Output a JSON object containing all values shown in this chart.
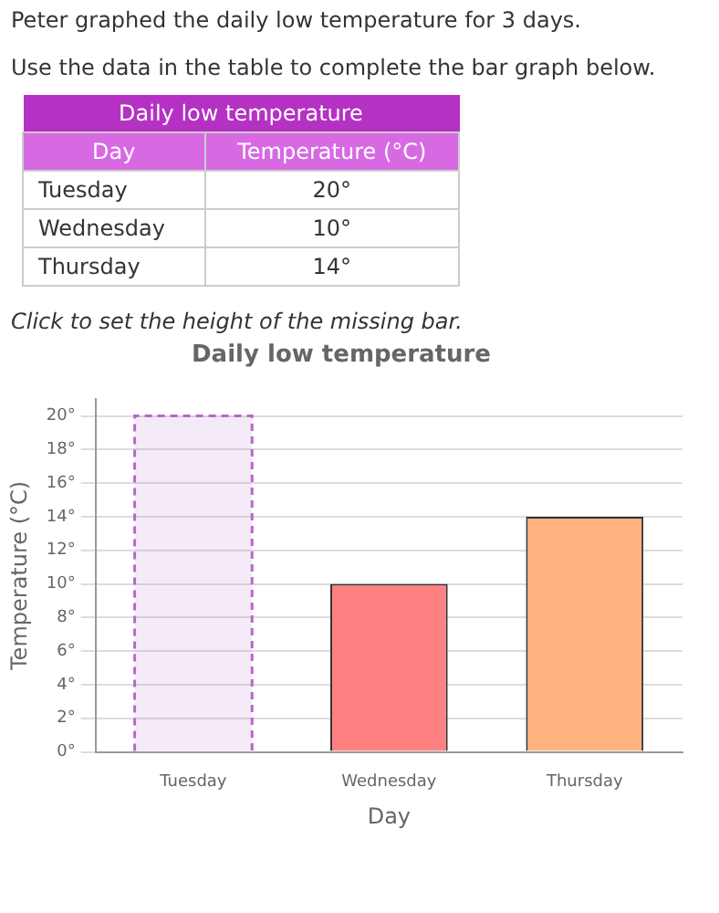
{
  "chart_data": {
    "type": "bar",
    "title": "Daily low temperature",
    "xlabel": "Day",
    "ylabel": "Temperature (°C)",
    "categories": [
      "Tuesday",
      "Wednesday",
      "Thursday"
    ],
    "series": [
      {
        "type": "bar",
        "color": "#b768c8",
        "line_style": "dashed",
        "values": [
          20,
          null,
          null
        ]
      },
      {
        "type": "bar",
        "colors": [
          "#b768c8",
          "#ff8080",
          "#ffb380"
        ],
        "values": [
          null,
          10,
          14
        ]
      }
    ],
    "ylim": [
      0,
      21
    ],
    "yticks": [
      {
        "value": 0,
        "label": "0°"
      },
      {
        "value": 2,
        "label": "2°"
      },
      {
        "value": 4,
        "label": "4°"
      },
      {
        "value": 6,
        "label": "6°"
      },
      {
        "value": 8,
        "label": "8°"
      },
      {
        "value": 10,
        "label": "10°"
      },
      {
        "value": 12,
        "label": "12°"
      },
      {
        "value": 14,
        "label": "14°"
      },
      {
        "value": 16,
        "label": "16°"
      },
      {
        "value": 18,
        "label": "18°"
      },
      {
        "value": 20,
        "label": "20°"
      }
    ],
    "grid": "y",
    "legend": false,
    "annotations": [
      "Peter graphed the daily low temperature for 3 days.",
      "Use the data in the table to complete the bar graph below.",
      "Daily low temperature",
      "Day",
      "Temperature (°C)",
      "Tuesday",
      "20°",
      "Wednesday",
      "10°",
      "Thursday",
      "14°",
      "Click to set the height of the missing bar."
    ]
  }
}
